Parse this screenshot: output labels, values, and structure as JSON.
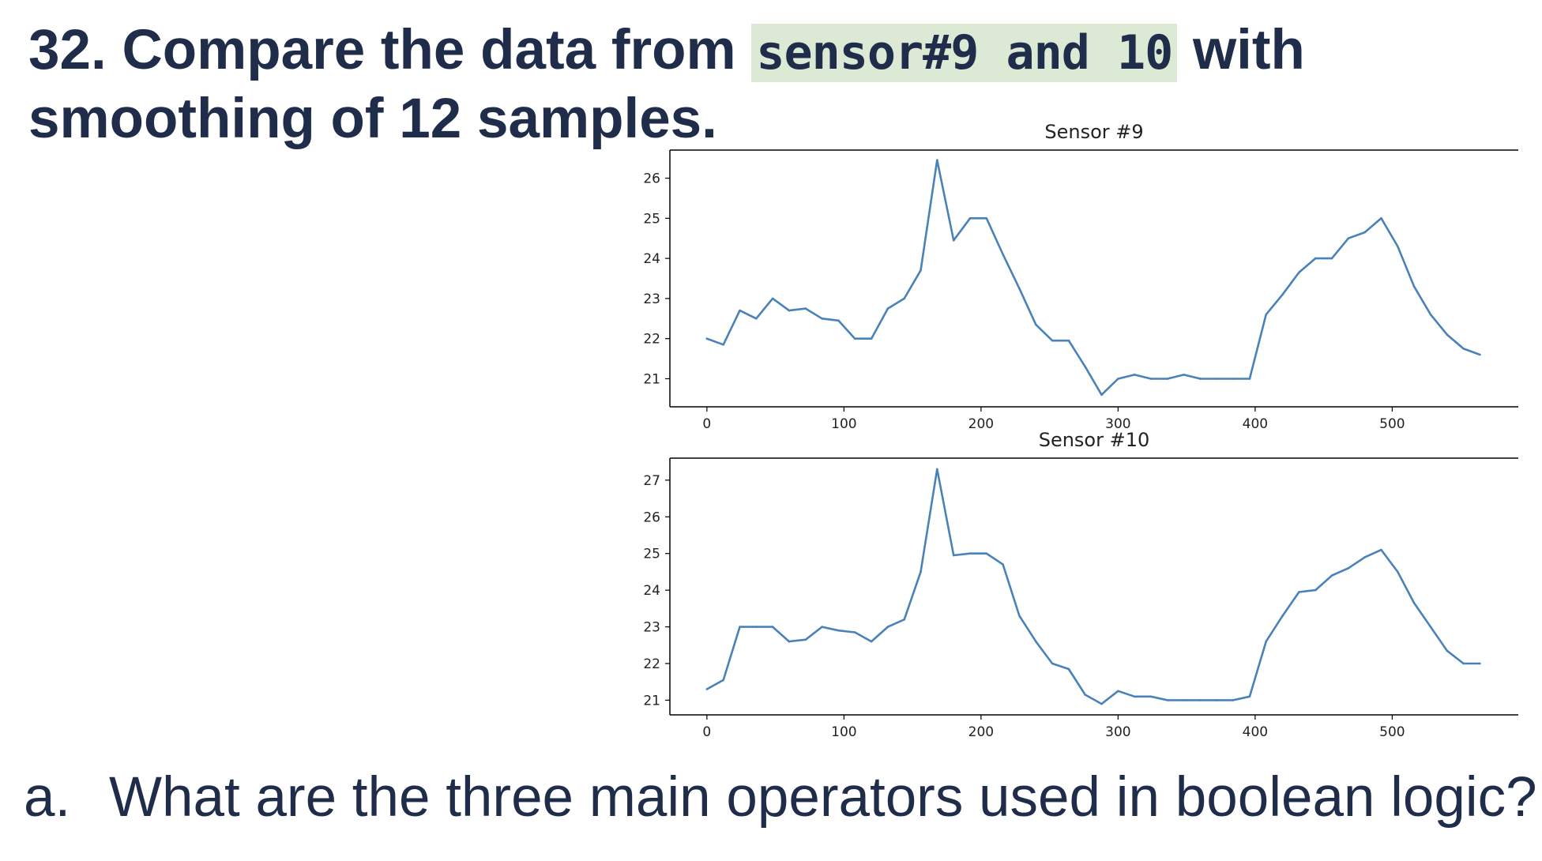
{
  "heading": {
    "number": "32.",
    "before": "Compare the data from",
    "code": "sensor#9 and 10",
    "after": "with smoothing of 12 samples."
  },
  "question": {
    "marker": "a.",
    "text": "What are the three main operators used in boolean logic?"
  },
  "colors": {
    "line": "#4a82b8",
    "code_highlight": "#dce9d5",
    "text": "#1f2d4a"
  },
  "chart_data": [
    {
      "type": "line",
      "title": "Sensor #9",
      "xlabel": "",
      "ylabel": "",
      "xlim": [
        -27,
        592
      ],
      "ylim": [
        20.3,
        26.7
      ],
      "xticks": [
        0,
        100,
        200,
        300,
        400,
        500
      ],
      "yticks": [
        21,
        22,
        23,
        24,
        25,
        26
      ],
      "grid": false,
      "series": [
        {
          "x": [
            0,
            12,
            24,
            36,
            48,
            60,
            72,
            84,
            96,
            108,
            120,
            132,
            144,
            156,
            168,
            180,
            192,
            204,
            216,
            228,
            240,
            252,
            264,
            276,
            288,
            300,
            312,
            324,
            336,
            348,
            360,
            372,
            384,
            396,
            408,
            420,
            432,
            444,
            456,
            468,
            480,
            492,
            504,
            516,
            528,
            540,
            552,
            564
          ],
          "values": [
            22.0,
            21.85,
            22.7,
            22.5,
            23.0,
            22.7,
            22.75,
            22.5,
            22.45,
            22.0,
            22.0,
            22.75,
            23.0,
            23.7,
            26.45,
            24.45,
            25.0,
            25.0,
            24.1,
            23.25,
            22.35,
            21.95,
            21.95,
            21.3,
            20.6,
            21.0,
            21.1,
            21.0,
            21.0,
            21.1,
            21.0,
            21.0,
            21.0,
            21.0,
            22.6,
            23.1,
            23.65,
            24.0,
            24.0,
            24.5,
            24.65,
            25.0,
            24.3,
            23.3,
            22.6,
            22.1,
            21.75,
            21.6
          ]
        }
      ]
    },
    {
      "type": "line",
      "title": "Sensor #10",
      "xlabel": "",
      "ylabel": "",
      "xlim": [
        -27,
        592
      ],
      "ylim": [
        20.6,
        27.6
      ],
      "xticks": [
        0,
        100,
        200,
        300,
        400,
        500
      ],
      "yticks": [
        21,
        22,
        23,
        24,
        25,
        26,
        27
      ],
      "grid": false,
      "series": [
        {
          "x": [
            0,
            12,
            24,
            36,
            48,
            60,
            72,
            84,
            96,
            108,
            120,
            132,
            144,
            156,
            168,
            180,
            192,
            204,
            216,
            228,
            240,
            252,
            264,
            276,
            288,
            300,
            312,
            324,
            336,
            348,
            360,
            372,
            384,
            396,
            408,
            420,
            432,
            444,
            456,
            468,
            480,
            492,
            504,
            516,
            528,
            540,
            552,
            564
          ],
          "values": [
            21.3,
            21.55,
            23.0,
            23.0,
            23.0,
            22.6,
            22.65,
            23.0,
            22.9,
            22.85,
            22.6,
            23.0,
            23.2,
            24.5,
            27.3,
            24.95,
            25.0,
            25.0,
            24.7,
            23.3,
            22.6,
            22.0,
            21.85,
            21.15,
            20.9,
            21.25,
            21.1,
            21.1,
            21.0,
            21.0,
            21.0,
            21.0,
            21.0,
            21.1,
            22.6,
            23.3,
            23.95,
            24.0,
            24.4,
            24.6,
            24.9,
            25.1,
            24.5,
            23.65,
            23.0,
            22.35,
            22.0,
            22.0
          ]
        }
      ]
    }
  ]
}
